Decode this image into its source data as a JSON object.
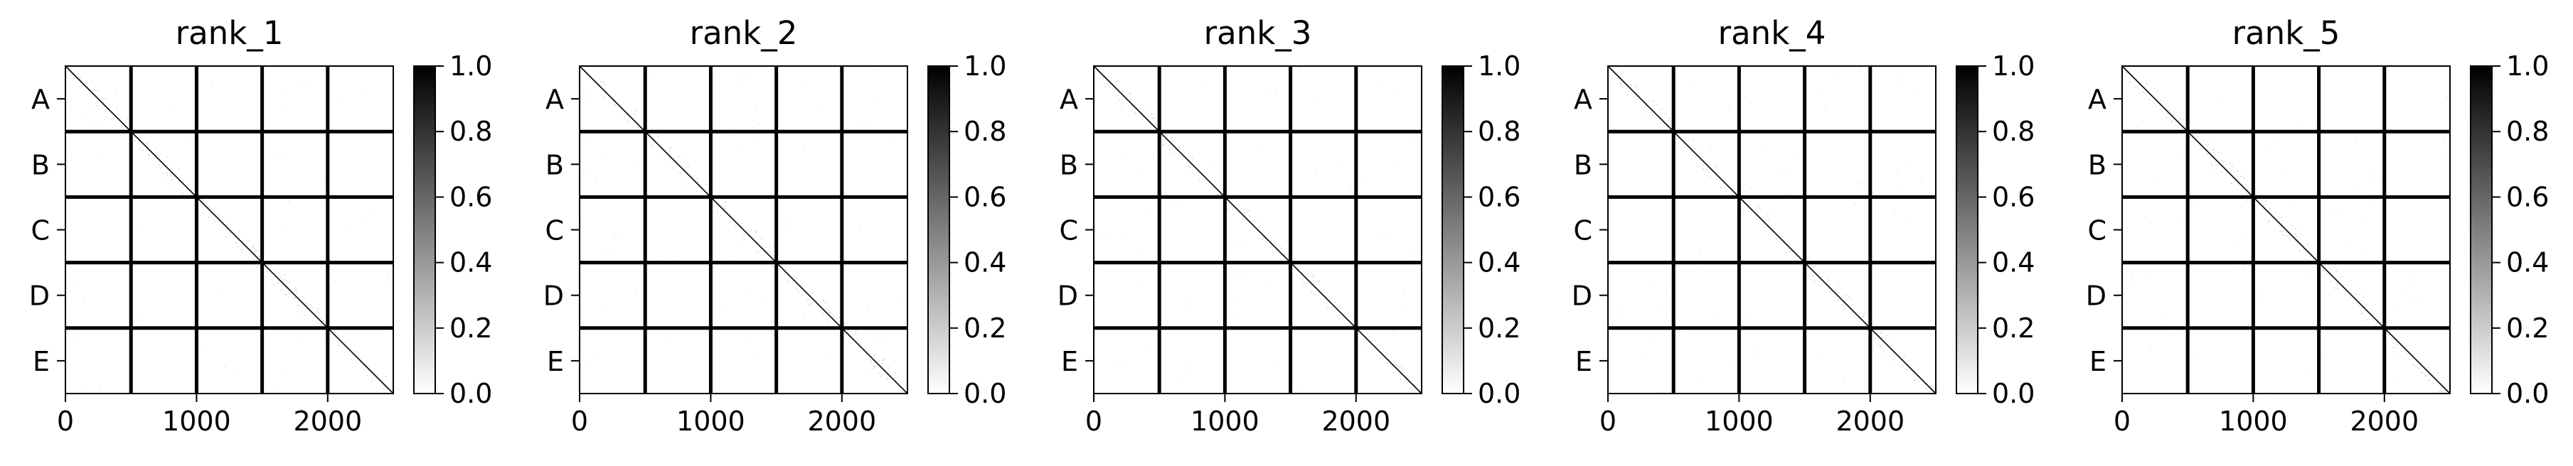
{
  "chart_data": [
    {
      "type": "heatmap",
      "title": "rank_1",
      "x_ticks": [
        "0",
        "1000",
        "2000"
      ],
      "x_tick_values": [
        0,
        1000,
        2000
      ],
      "xlim": [
        0,
        2500
      ],
      "y_categories": [
        "A",
        "B",
        "C",
        "D",
        "E"
      ],
      "block_boundaries": [
        500,
        1000,
        1500,
        2000
      ],
      "colorbar": {
        "ticks": [
          "0.0",
          "0.2",
          "0.4",
          "0.6",
          "0.8",
          "1.0"
        ],
        "range": [
          0.0,
          1.0
        ],
        "colormap": "white-to-black"
      },
      "diagonal_value": 1.0
    },
    {
      "type": "heatmap",
      "title": "rank_2",
      "x_ticks": [
        "0",
        "1000",
        "2000"
      ],
      "x_tick_values": [
        0,
        1000,
        2000
      ],
      "xlim": [
        0,
        2500
      ],
      "y_categories": [
        "A",
        "B",
        "C",
        "D",
        "E"
      ],
      "block_boundaries": [
        500,
        1000,
        1500,
        2000
      ],
      "colorbar": {
        "ticks": [
          "0.0",
          "0.2",
          "0.4",
          "0.6",
          "0.8",
          "1.0"
        ],
        "range": [
          0.0,
          1.0
        ],
        "colormap": "white-to-black"
      },
      "diagonal_value": 1.0
    },
    {
      "type": "heatmap",
      "title": "rank_3",
      "x_ticks": [
        "0",
        "1000",
        "2000"
      ],
      "x_tick_values": [
        0,
        1000,
        2000
      ],
      "xlim": [
        0,
        2500
      ],
      "y_categories": [
        "A",
        "B",
        "C",
        "D",
        "E"
      ],
      "block_boundaries": [
        500,
        1000,
        1500,
        2000
      ],
      "colorbar": {
        "ticks": [
          "0.0",
          "0.2",
          "0.4",
          "0.6",
          "0.8",
          "1.0"
        ],
        "range": [
          0.0,
          1.0
        ],
        "colormap": "white-to-black"
      },
      "diagonal_value": 1.0
    },
    {
      "type": "heatmap",
      "title": "rank_4",
      "x_ticks": [
        "0",
        "1000",
        "2000"
      ],
      "x_tick_values": [
        0,
        1000,
        2000
      ],
      "xlim": [
        0,
        2500
      ],
      "y_categories": [
        "A",
        "B",
        "C",
        "D",
        "E"
      ],
      "block_boundaries": [
        500,
        1000,
        1500,
        2000
      ],
      "colorbar": {
        "ticks": [
          "0.0",
          "0.2",
          "0.4",
          "0.6",
          "0.8",
          "1.0"
        ],
        "range": [
          0.0,
          1.0
        ],
        "colormap": "white-to-black"
      },
      "diagonal_value": 1.0
    },
    {
      "type": "heatmap",
      "title": "rank_5",
      "x_ticks": [
        "0",
        "1000",
        "2000"
      ],
      "x_tick_values": [
        0,
        1000,
        2000
      ],
      "xlim": [
        0,
        2500
      ],
      "y_categories": [
        "A",
        "B",
        "C",
        "D",
        "E"
      ],
      "block_boundaries": [
        500,
        1000,
        1500,
        2000
      ],
      "colorbar": {
        "ticks": [
          "0.0",
          "0.2",
          "0.4",
          "0.6",
          "0.8",
          "1.0"
        ],
        "range": [
          0.0,
          1.0
        ],
        "colormap": "white-to-black"
      },
      "diagonal_value": 1.0
    }
  ]
}
